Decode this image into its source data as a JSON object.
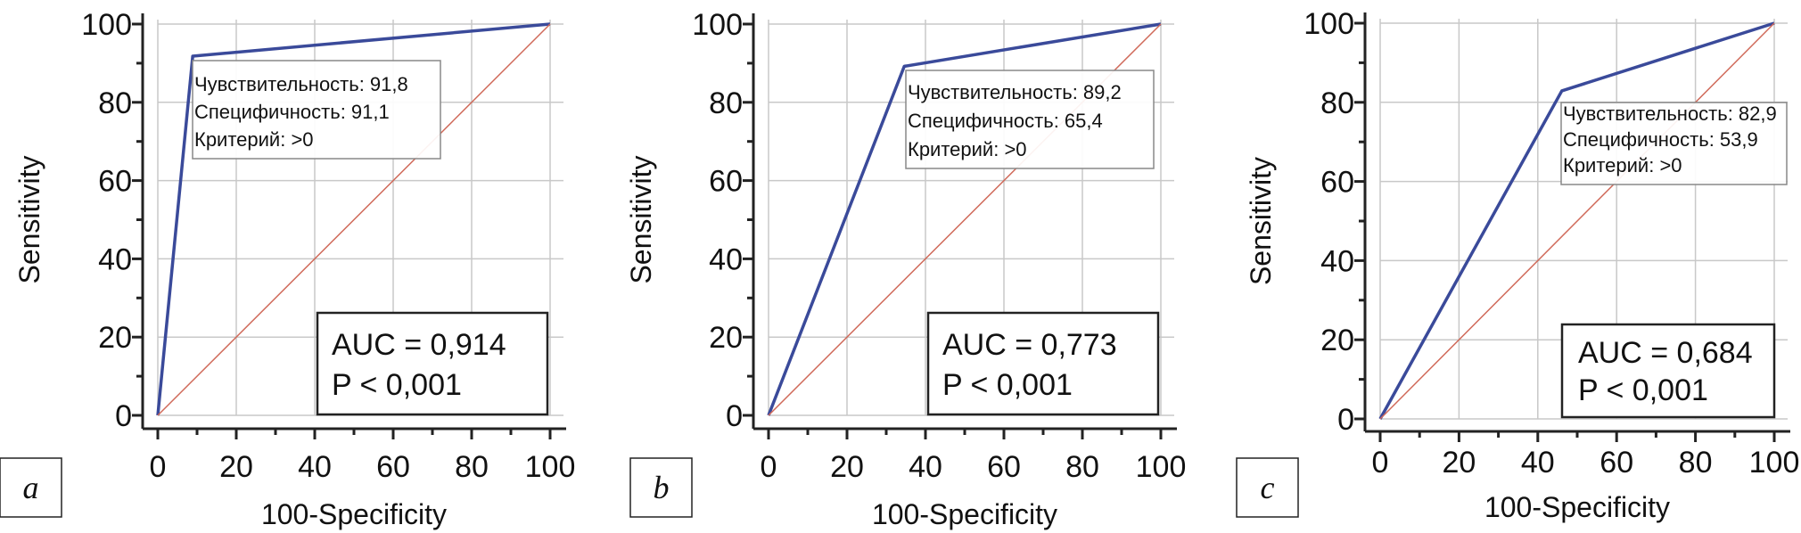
{
  "colors": {
    "roc_line": "#3a4a9a",
    "diagonal": "#d06a5a",
    "grid": "#c8c8c8",
    "axis": "#222222",
    "box_border": "#222222",
    "annotation_border": "#888888"
  },
  "chart_data": [
    {
      "type": "line",
      "panel_label": "a",
      "xlabel": "100-Specificity",
      "ylabel": "Sensitivity",
      "xlim": [
        0,
        100
      ],
      "ylim": [
        0,
        100
      ],
      "x_ticks": [
        "0",
        "20",
        "40",
        "60",
        "80",
        "100"
      ],
      "y_ticks": [
        "0",
        "20",
        "40",
        "60",
        "80",
        "100"
      ],
      "grid": true,
      "series": [
        {
          "name": "ROC",
          "x": [
            0,
            8.9,
            100
          ],
          "y": [
            0,
            91.8,
            100
          ]
        },
        {
          "name": "Reference",
          "x": [
            0,
            100
          ],
          "y": [
            0,
            100
          ]
        }
      ],
      "annotation": {
        "sensitivity": "Чувствительность: 91,8",
        "specificity": "Специфичность: 91,1",
        "criterion": "Критерий: >0"
      },
      "auc_text": "AUC = 0,914",
      "p_text": "P < 0,001"
    },
    {
      "type": "line",
      "panel_label": "b",
      "xlabel": "100-Specificity",
      "ylabel": "Sensitivity",
      "xlim": [
        0,
        100
      ],
      "ylim": [
        0,
        100
      ],
      "x_ticks": [
        "0",
        "20",
        "40",
        "60",
        "80",
        "100"
      ],
      "y_ticks": [
        "0",
        "20",
        "40",
        "60",
        "80",
        "100"
      ],
      "grid": true,
      "series": [
        {
          "name": "ROC",
          "x": [
            0,
            34.6,
            100
          ],
          "y": [
            0,
            89.2,
            100
          ]
        },
        {
          "name": "Reference",
          "x": [
            0,
            100
          ],
          "y": [
            0,
            100
          ]
        }
      ],
      "annotation": {
        "sensitivity": "Чувствительность: 89,2",
        "specificity": "Специфичность: 65,4",
        "criterion": "Критерий: >0"
      },
      "auc_text": "AUC = 0,773",
      "p_text": "P < 0,001"
    },
    {
      "type": "line",
      "panel_label": "c",
      "xlabel": "100-Specificity",
      "ylabel": "Sensitivity",
      "xlim": [
        0,
        100
      ],
      "ylim": [
        0,
        100
      ],
      "x_ticks": [
        "0",
        "20",
        "40",
        "60",
        "80",
        "100"
      ],
      "y_ticks": [
        "0",
        "20",
        "40",
        "60",
        "80",
        "100"
      ],
      "grid": true,
      "series": [
        {
          "name": "ROC",
          "x": [
            0,
            46.1,
            100
          ],
          "y": [
            0,
            82.9,
            100
          ]
        },
        {
          "name": "Reference",
          "x": [
            0,
            100
          ],
          "y": [
            0,
            100
          ]
        }
      ],
      "annotation": {
        "sensitivity": "Чувствительность: 82,9",
        "specificity": "Специфичность: 53,9",
        "criterion": "Критерий: >0"
      },
      "auc_text": "AUC = 0,684",
      "p_text": "P < 0,001"
    }
  ]
}
